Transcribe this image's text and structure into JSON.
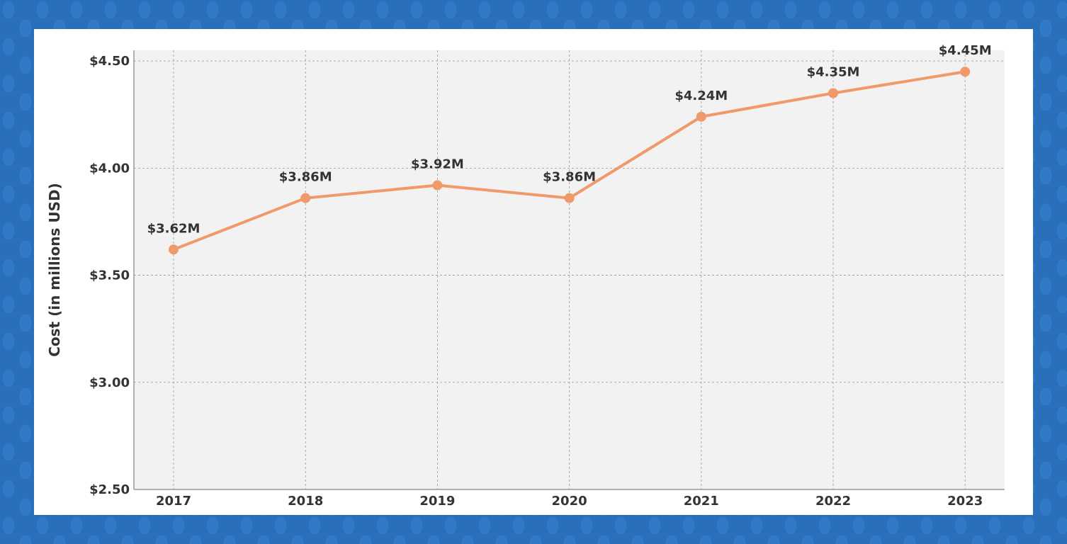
{
  "colors": {
    "line": "#f0996a",
    "plot_bg": "#f2f2f2",
    "grid": "#999999",
    "axis": "#999999",
    "text": "#333333"
  },
  "chart_data": {
    "type": "line",
    "title": "",
    "xlabel": "",
    "ylabel": "Cost (in millions USD)",
    "x": [
      "2017",
      "2018",
      "2019",
      "2020",
      "2021",
      "2022",
      "2023"
    ],
    "values": [
      3.62,
      3.86,
      3.92,
      3.86,
      4.24,
      4.35,
      4.45
    ],
    "data_labels": [
      "$3.62M",
      "$3.86M",
      "$3.92M",
      "$3.86M",
      "$4.24M",
      "$4.35M",
      "$4.45M"
    ],
    "ylim": [
      2.5,
      4.55
    ],
    "y_ticks": [
      2.5,
      3.0,
      3.5,
      4.0,
      4.5
    ],
    "y_tick_labels": [
      "$2.50",
      "$3.00",
      "$3.50",
      "$4.00",
      "$4.50"
    ],
    "grid": true,
    "markers": true
  }
}
